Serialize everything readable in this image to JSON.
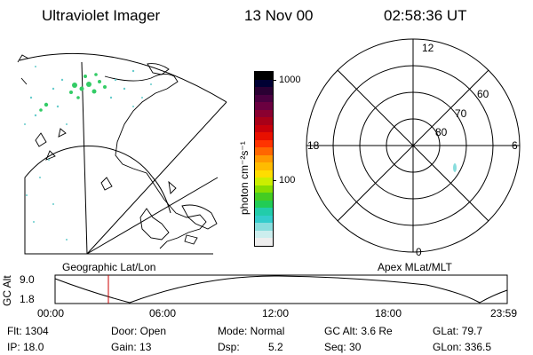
{
  "header": {
    "instrument": "Ultraviolet Imager",
    "date": "13 Nov 00",
    "time": "02:58:36 UT"
  },
  "colorbar": {
    "label": "photon cm⁻²s⁻¹",
    "ticks": [
      "1000",
      "100"
    ],
    "colors": [
      "#000000",
      "#000033",
      "#2a0033",
      "#4a0040",
      "#6a0040",
      "#8a0030",
      "#a80018",
      "#c8000a",
      "#e81000",
      "#ff3300",
      "#ff6600",
      "#ff9900",
      "#ffbb00",
      "#ffdd00",
      "#ccee00",
      "#88dd00",
      "#44cc22",
      "#22cc55",
      "#22ccaa",
      "#33cccc",
      "#88dddd",
      "#cceeee",
      "#eeeeee"
    ]
  },
  "left_map": {
    "caption": "Geographic Lat/Lon"
  },
  "right_polar": {
    "caption": "Apex MLat/MLT",
    "hour_labels": {
      "top": "12",
      "left": "18",
      "right": "6",
      "bottom": "0"
    },
    "lat_labels": [
      "60",
      "70",
      "80"
    ]
  },
  "timeline": {
    "ylabel": "GC Alt",
    "yticks": [
      "9.0",
      "1.8"
    ],
    "xticks": [
      "00:00",
      "06:00",
      "12:00",
      "18:00",
      "23:59"
    ],
    "marker_color": "#cc0000",
    "marker_time": "02:58"
  },
  "info": {
    "flt": "Flt: 1304",
    "ip": "IP: 18.0",
    "door": "Door: Open",
    "gain": "Gain: 13",
    "mode": "Mode: Normal",
    "dsp_label": "Dsp:",
    "dsp_value": "5.2",
    "gcalt": "GC Alt: 3.6 Re",
    "seq": "Seq: 30",
    "glat": "GLat: 79.7",
    "glon": "GLon: 336.5"
  }
}
